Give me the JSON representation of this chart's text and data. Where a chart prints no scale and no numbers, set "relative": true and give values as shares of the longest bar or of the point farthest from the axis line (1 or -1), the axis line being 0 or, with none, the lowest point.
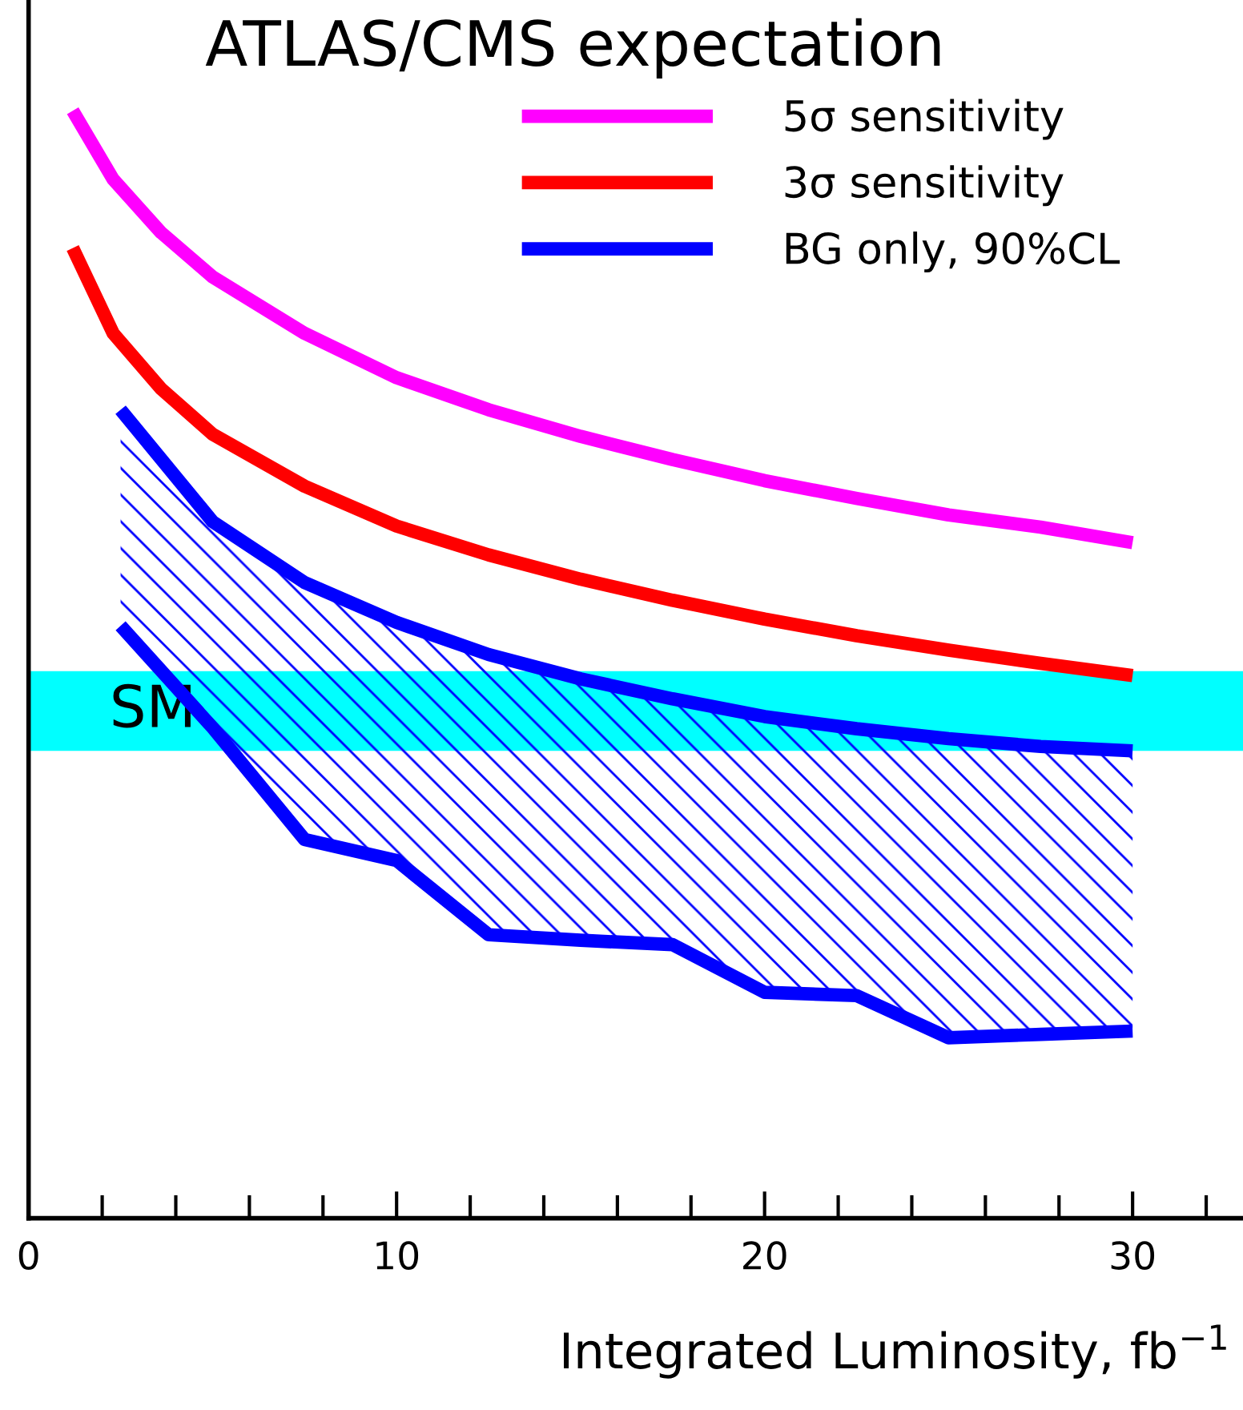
{
  "chart_data": {
    "type": "line",
    "title": "ATLAS/CMS expectation",
    "xlabel": "Integrated Luminosity, fb$^{−1}$",
    "relative": true,
    "xlim": [
      0,
      33
    ],
    "xticks": [
      0,
      {
        "value": 2,
        "label": null
      },
      {
        "value": 4,
        "label": null
      },
      {
        "value": 6,
        "label": null
      },
      {
        "value": 8,
        "label": null
      },
      10,
      {
        "value": 12,
        "label": null
      },
      {
        "value": 14,
        "label": null
      },
      {
        "value": 16,
        "label": null
      },
      {
        "value": 18,
        "label": null
      },
      20,
      {
        "value": 22,
        "label": null
      },
      {
        "value": 24,
        "label": null
      },
      {
        "value": 26,
        "label": null
      },
      {
        "value": 28,
        "label": null
      },
      30,
      {
        "value": 32,
        "label": null
      }
    ],
    "series": [
      {
        "name": "5σ sensitivity",
        "color": "#ff00ff",
        "x": [
          1.2,
          2.3,
          3.6,
          5,
          7.5,
          10,
          12.5,
          15,
          17.5,
          20,
          22.5,
          25,
          27.5,
          30
        ],
        "values": [
          1.0,
          0.938,
          0.89,
          0.85,
          0.799,
          0.759,
          0.73,
          0.706,
          0.685,
          0.666,
          0.65,
          0.635,
          0.624,
          0.61
        ]
      },
      {
        "name": "3σ sensitivity",
        "color": "#ff0000",
        "x": [
          1.2,
          2.3,
          3.6,
          5,
          7.5,
          10,
          12.5,
          15,
          17.5,
          20,
          22.5,
          25,
          27.5,
          30
        ],
        "values": [
          0.876,
          0.799,
          0.749,
          0.708,
          0.661,
          0.625,
          0.599,
          0.577,
          0.558,
          0.541,
          0.526,
          0.513,
          0.501,
          0.49
        ]
      },
      {
        "name": "BG only, 90%CL",
        "color": "#0000ff",
        "x": [
          2.5,
          5,
          7.5,
          10,
          12.5,
          15,
          17.5,
          20,
          22.5,
          25,
          27.5,
          30
        ],
        "values": [
          0.73,
          0.629,
          0.574,
          0.538,
          0.509,
          0.487,
          0.469,
          0.453,
          0.442,
          0.433,
          0.426,
          0.422
        ],
        "upper": [
          0.73,
          0.629,
          0.574,
          0.538,
          0.509,
          0.487,
          0.469,
          0.453,
          0.442,
          0.433,
          0.426,
          0.422
        ],
        "lower": [
          0.535,
          0.443,
          0.342,
          0.323,
          0.256,
          0.251,
          0.247,
          0.204,
          0.201,
          0.163,
          0.166,
          0.169
        ]
      },
      {
        "color": "#0000ff",
        "x": [
          2.5,
          5,
          7.5,
          10,
          12.5,
          15,
          17.5,
          20,
          22.5,
          25,
          27.5,
          30
        ],
        "values": [
          0.535,
          0.443,
          0.342,
          0.323,
          0.256,
          0.251,
          0.247,
          0.204,
          0.201,
          0.163,
          0.166,
          0.169
        ]
      }
    ],
    "bands": [
      {
        "axis": "y",
        "from": 0.422,
        "to": 0.494,
        "label": "SM",
        "color": "#00ffff"
      }
    ],
    "legend": "top right",
    "grid": false,
    "marker": "none",
    "line_style": "solid"
  }
}
